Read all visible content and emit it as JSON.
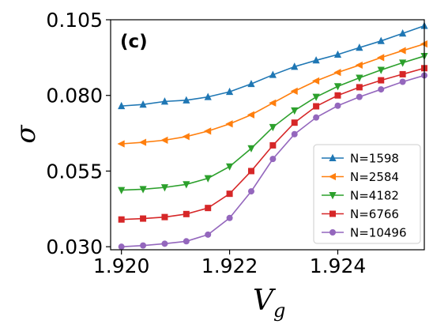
{
  "chart_data": {
    "type": "line",
    "panel_label": "(c)",
    "xlabel": "V",
    "xlabel_sub": "g",
    "ylabel": "σ",
    "xlim": [
      1.9198,
      1.9256
    ],
    "ylim": [
      0.029,
      0.105
    ],
    "xticks": [
      1.92,
      1.922,
      1.924
    ],
    "xtick_labels": [
      "1.920",
      "1.922",
      "1.924"
    ],
    "yticks": [
      0.03,
      0.055,
      0.08,
      0.105
    ],
    "ytick_labels": [
      "0.030",
      "0.055",
      "0.080",
      "0.105"
    ],
    "grid": false,
    "legend_position": "lower-right",
    "x": [
      1.92,
      1.9204,
      1.9208,
      1.9212,
      1.9216,
      1.922,
      1.9224,
      1.9228,
      1.9232,
      1.9236,
      1.924,
      1.9244,
      1.9248,
      1.9252,
      1.9256
    ],
    "series": [
      {
        "name": "N=1598",
        "color": "#1f77b4",
        "marker": "triangle-up",
        "values": [
          0.0765,
          0.077,
          0.078,
          0.0784,
          0.0795,
          0.0812,
          0.0838,
          0.0868,
          0.0895,
          0.0916,
          0.0935,
          0.0958,
          0.098,
          0.1005,
          0.103
        ]
      },
      {
        "name": "N=2584",
        "color": "#ff7f0e",
        "marker": "triangle-left",
        "values": [
          0.064,
          0.0645,
          0.0652,
          0.0664,
          0.0682,
          0.0706,
          0.0736,
          0.0775,
          0.0814,
          0.0848,
          0.0876,
          0.09,
          0.0925,
          0.0948,
          0.097
        ]
      },
      {
        "name": "N=4182",
        "color": "#2ca02c",
        "marker": "triangle-down",
        "values": [
          0.0487,
          0.049,
          0.0496,
          0.0506,
          0.0526,
          0.0565,
          0.0625,
          0.0695,
          0.075,
          0.0795,
          0.083,
          0.0858,
          0.0884,
          0.0908,
          0.093
        ]
      },
      {
        "name": "N=6766",
        "color": "#d62728",
        "marker": "square",
        "values": [
          0.039,
          0.0393,
          0.0398,
          0.0408,
          0.0428,
          0.0475,
          0.055,
          0.0635,
          0.071,
          0.0764,
          0.08,
          0.0827,
          0.085,
          0.087,
          0.089
        ]
      },
      {
        "name": "N=10496",
        "color": "#9467bd",
        "marker": "circle",
        "values": [
          0.03,
          0.0304,
          0.031,
          0.0318,
          0.034,
          0.0395,
          0.0483,
          0.059,
          0.0672,
          0.0727,
          0.0766,
          0.0795,
          0.082,
          0.0845,
          0.0866
        ]
      }
    ]
  }
}
